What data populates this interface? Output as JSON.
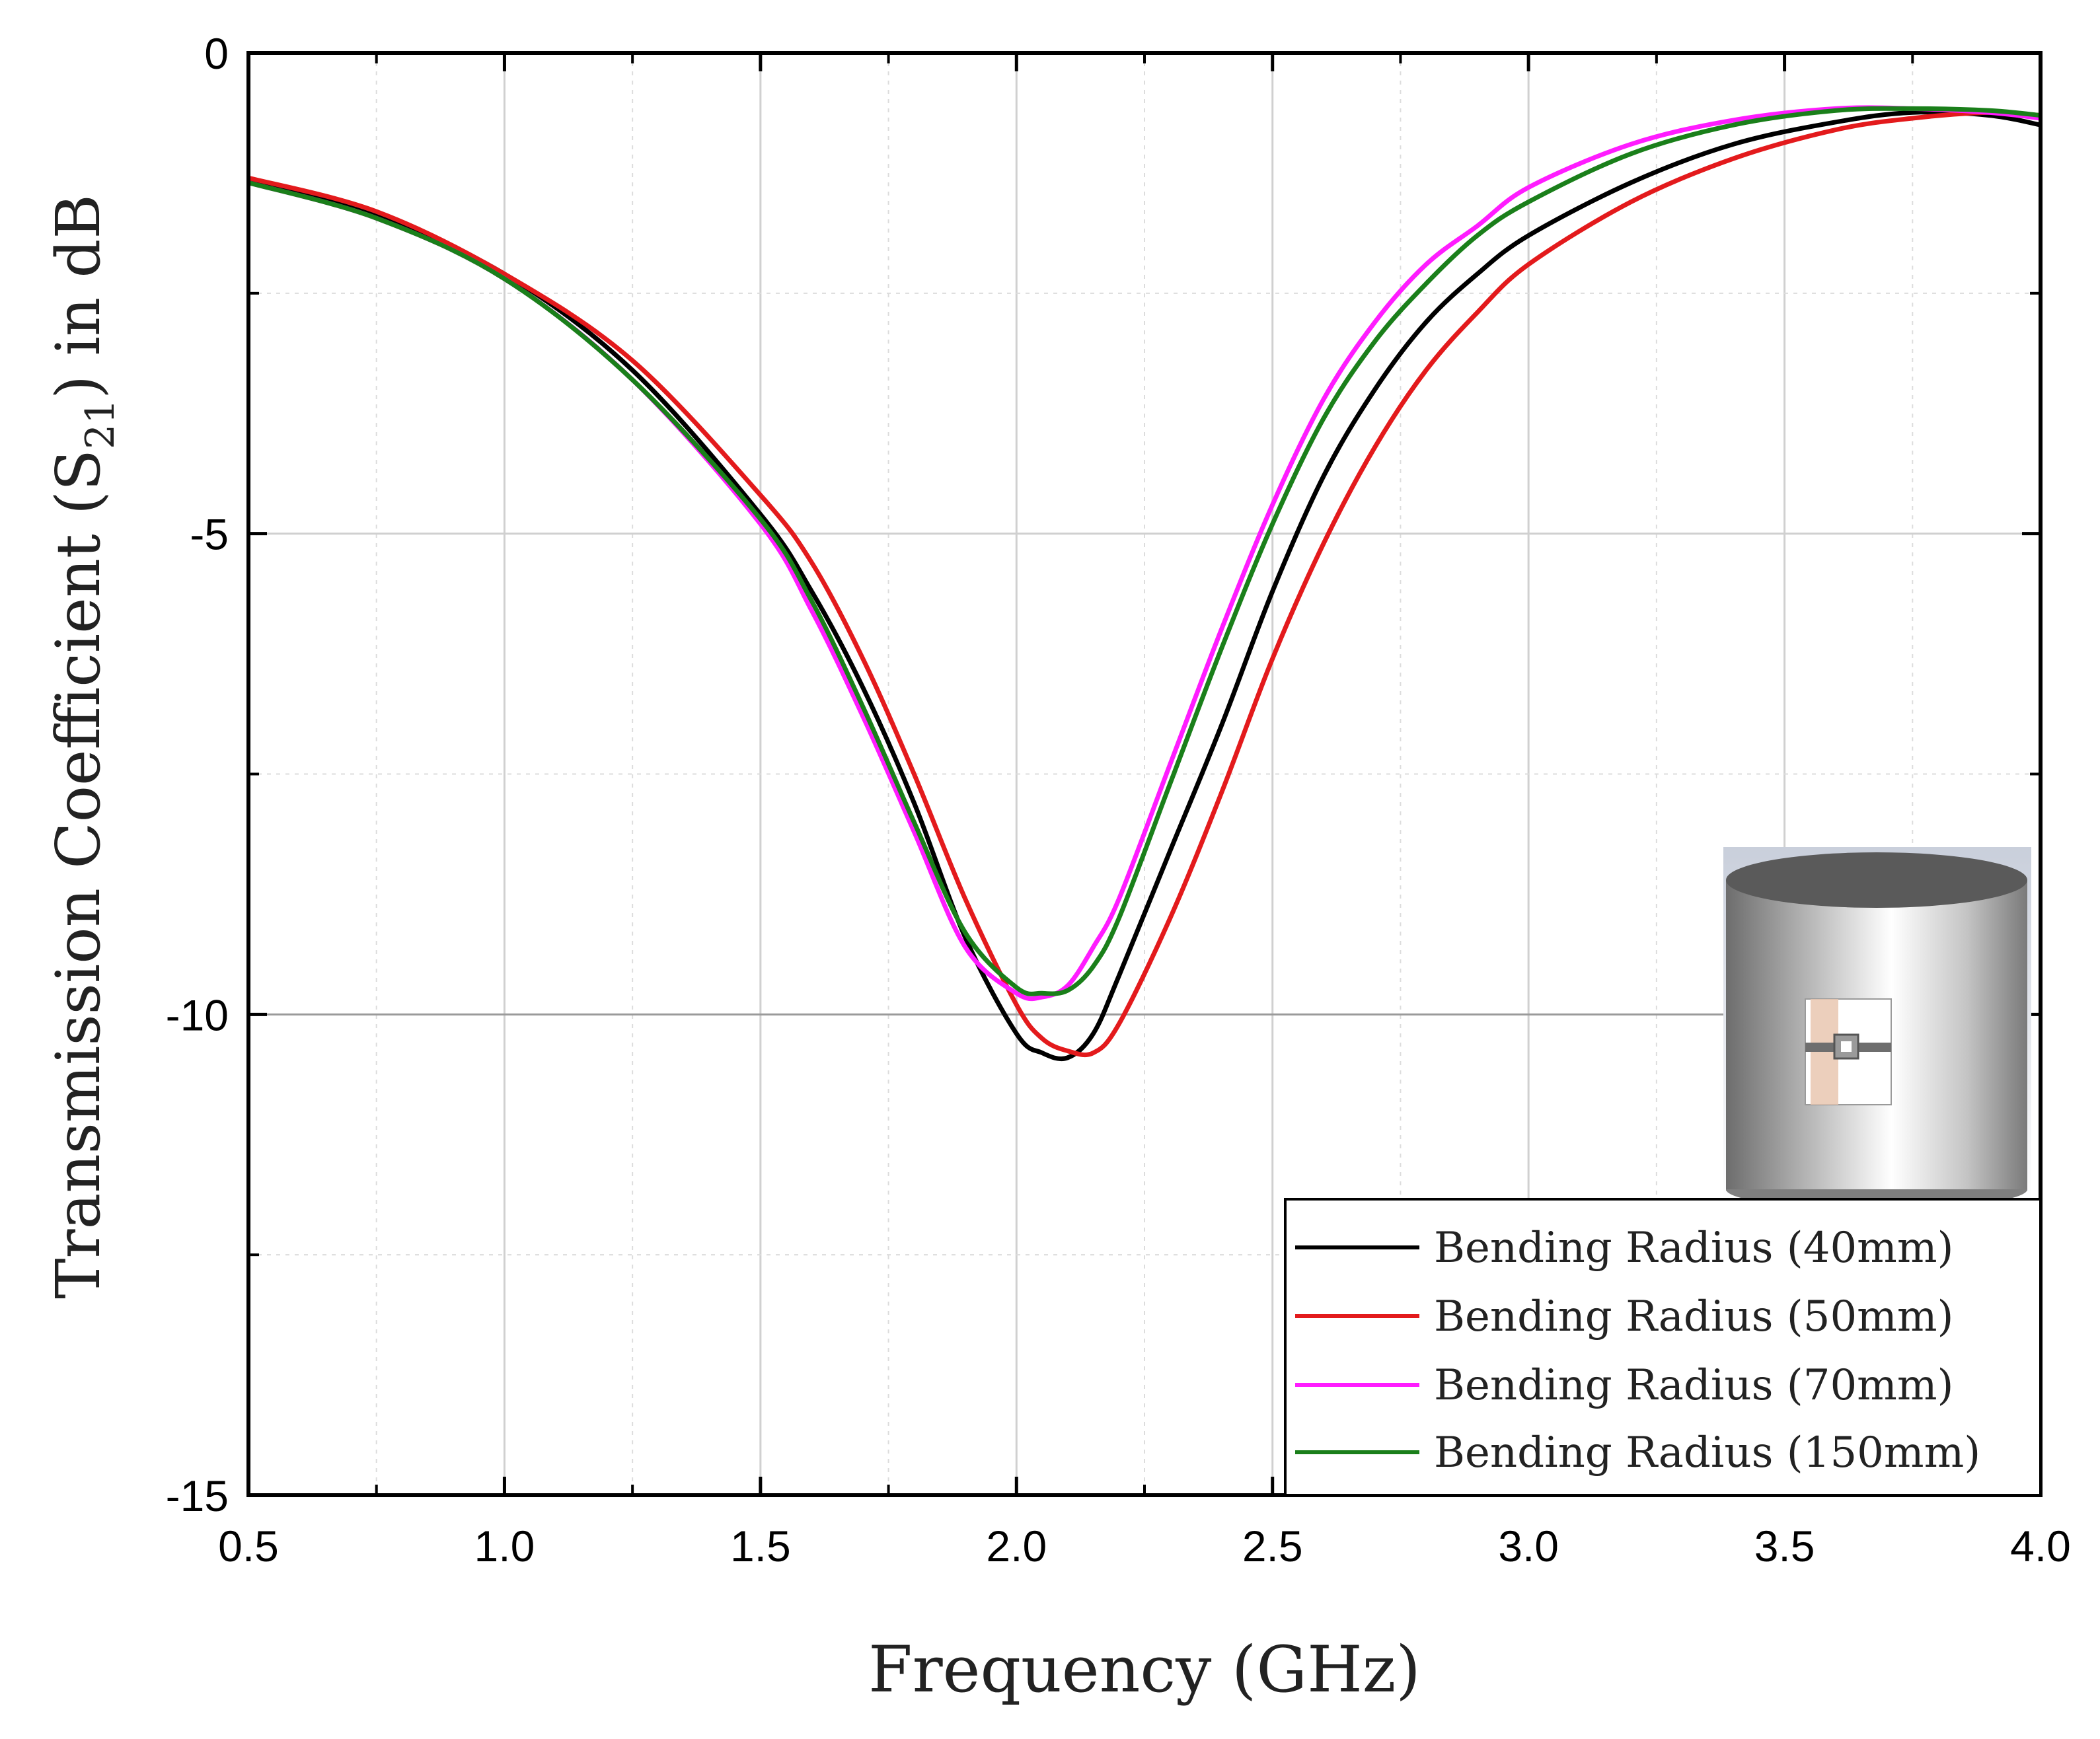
{
  "chart_data": {
    "type": "line",
    "title": "",
    "xlabel": "Frequency (GHz)",
    "ylabel": {
      "prefix": "Transmission Coefficient (S",
      "subscript": "21",
      "suffix": ") in dB"
    },
    "xlim": [
      0.5,
      4.0
    ],
    "ylim": [
      -15,
      0
    ],
    "x_ticks": [
      {
        "value": 0.5,
        "label": "0.5"
      },
      {
        "value": 1.0,
        "label": "1.0"
      },
      {
        "value": 1.5,
        "label": "1.5"
      },
      {
        "value": 2.0,
        "label": "2.0"
      },
      {
        "value": 2.5,
        "label": "2.5"
      },
      {
        "value": 3.0,
        "label": "3.0"
      },
      {
        "value": 3.5,
        "label": "3.5"
      },
      {
        "value": 4.0,
        "label": "4.0"
      }
    ],
    "x_minor_ticks": [
      0.75,
      1.25,
      1.75,
      2.25,
      2.75,
      3.25,
      3.75
    ],
    "y_ticks": [
      {
        "value": 0,
        "label": "0"
      },
      {
        "value": -5,
        "label": "-5"
      },
      {
        "value": -10,
        "label": "-10"
      },
      {
        "value": -15,
        "label": "-15"
      }
    ],
    "y_minor_ticks": [
      -2.5,
      -7.5,
      -12.5
    ],
    "grid": true,
    "legend_position": "bottom-right",
    "series": [
      {
        "name": "Bending Radius (40mm)",
        "color": "#000000",
        "x": [
          0.5,
          0.75,
          1.0,
          1.25,
          1.5,
          1.6,
          1.7,
          1.8,
          1.9,
          2.0,
          2.05,
          2.1,
          2.15,
          2.2,
          2.3,
          2.4,
          2.5,
          2.6,
          2.7,
          2.8,
          2.9,
          3.0,
          3.2,
          3.4,
          3.6,
          3.75,
          3.9,
          4.0
        ],
        "y": [
          -1.32,
          -1.7,
          -2.3,
          -3.3,
          -4.8,
          -5.6,
          -6.6,
          -7.8,
          -9.2,
          -10.2,
          -10.4,
          -10.45,
          -10.2,
          -9.6,
          -8.3,
          -7.0,
          -5.6,
          -4.4,
          -3.5,
          -2.8,
          -2.3,
          -1.9,
          -1.35,
          -0.95,
          -0.72,
          -0.62,
          -0.65,
          -0.75
        ]
      },
      {
        "name": "Bending Radius (50mm)",
        "color": "#e31a1c",
        "x": [
          0.5,
          0.75,
          1.0,
          1.25,
          1.5,
          1.6,
          1.7,
          1.8,
          1.9,
          2.0,
          2.05,
          2.1,
          2.15,
          2.2,
          2.3,
          2.4,
          2.5,
          2.6,
          2.7,
          2.8,
          2.9,
          3.0,
          3.2,
          3.4,
          3.6,
          3.75,
          3.9,
          4.0
        ],
        "y": [
          -1.3,
          -1.65,
          -2.3,
          -3.2,
          -4.6,
          -5.3,
          -6.3,
          -7.5,
          -8.8,
          -9.9,
          -10.25,
          -10.38,
          -10.4,
          -10.1,
          -9.0,
          -7.7,
          -6.3,
          -5.1,
          -4.1,
          -3.3,
          -2.7,
          -2.2,
          -1.55,
          -1.1,
          -0.8,
          -0.68,
          -0.62,
          -0.65
        ]
      },
      {
        "name": "Bending Radius (70mm)",
        "color": "#ff1cff",
        "x": [
          0.5,
          0.75,
          1.0,
          1.25,
          1.5,
          1.6,
          1.7,
          1.8,
          1.9,
          2.0,
          2.05,
          2.1,
          2.15,
          2.2,
          2.3,
          2.4,
          2.5,
          2.6,
          2.7,
          2.8,
          2.9,
          3.0,
          3.2,
          3.4,
          3.6,
          3.75,
          3.9,
          4.0
        ],
        "y": [
          -1.35,
          -1.72,
          -2.35,
          -3.4,
          -4.9,
          -5.8,
          -6.9,
          -8.1,
          -9.3,
          -9.78,
          -9.82,
          -9.7,
          -9.3,
          -8.8,
          -7.4,
          -6.0,
          -4.7,
          -3.6,
          -2.8,
          -2.2,
          -1.8,
          -1.4,
          -0.95,
          -0.7,
          -0.58,
          -0.58,
          -0.62,
          -0.68
        ]
      },
      {
        "name": "Bending Radius (150mm)",
        "color": "#1a7f1a",
        "x": [
          0.5,
          0.75,
          1.0,
          1.25,
          1.5,
          1.6,
          1.7,
          1.8,
          1.9,
          2.0,
          2.05,
          2.1,
          2.15,
          2.2,
          2.3,
          2.4,
          2.5,
          2.6,
          2.7,
          2.8,
          2.9,
          3.0,
          3.2,
          3.4,
          3.6,
          3.75,
          3.9,
          4.0
        ],
        "y": [
          -1.35,
          -1.72,
          -2.35,
          -3.4,
          -4.85,
          -5.7,
          -6.8,
          -8.0,
          -9.15,
          -9.72,
          -9.78,
          -9.75,
          -9.5,
          -9.0,
          -7.6,
          -6.2,
          -4.9,
          -3.8,
          -3.0,
          -2.4,
          -1.9,
          -1.55,
          -1.05,
          -0.75,
          -0.6,
          -0.58,
          -0.6,
          -0.65
        ]
      }
    ],
    "inset": {
      "description_icon": "bent-antenna-on-cylinder-icon"
    }
  }
}
